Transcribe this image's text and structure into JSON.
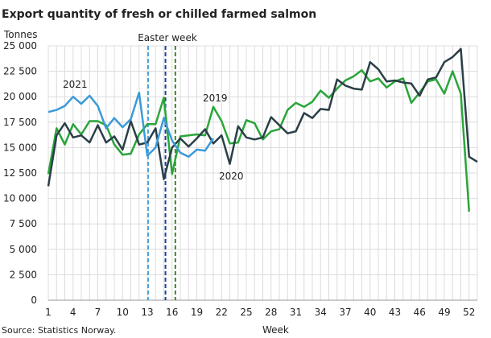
{
  "chart_data": {
    "type": "line",
    "title": "Export quantity of fresh or chilled farmed salmon",
    "ylabel": "Tonnes",
    "xlabel": "Week",
    "source": "Source: Statistics Norway.",
    "ylim": [
      0,
      25000
    ],
    "xlim": [
      1,
      53
    ],
    "yticks": [
      0,
      2500,
      5000,
      7500,
      10000,
      12500,
      15000,
      17500,
      20000,
      22500,
      25000
    ],
    "ytick_labels": [
      "0",
      "2 500",
      "5 000",
      "7 500",
      "10 000",
      "12 500",
      "15 000",
      "17 500",
      "20 000",
      "22 500",
      "25 000"
    ],
    "xticks": [
      1,
      4,
      7,
      10,
      13,
      16,
      19,
      22,
      25,
      28,
      31,
      34,
      37,
      40,
      43,
      46,
      49,
      52
    ],
    "grid": true,
    "annotation": "Easter week",
    "easter_weeks": [
      {
        "year": "2021",
        "week": 13.1,
        "color": "#4aa3df"
      },
      {
        "year": "2020",
        "week": 15.2,
        "color": "#1f3f9e"
      },
      {
        "year": "2019",
        "week": 16.4,
        "color": "#3a8a1e"
      }
    ],
    "series": [
      {
        "name": "2019",
        "color": "#2aa53a",
        "start_week": 1,
        "values": [
          12400,
          16900,
          15300,
          17300,
          16300,
          17600,
          17600,
          17200,
          15300,
          14300,
          14400,
          16300,
          17300,
          17300,
          19900,
          12400,
          16100,
          16200,
          16300,
          16200,
          19000,
          17600,
          15400,
          15500,
          17700,
          17400,
          15800,
          16600,
          16800,
          18700,
          19400,
          19000,
          19500,
          20600,
          19900,
          20800,
          21600,
          22000,
          22600,
          21500,
          21800,
          20900,
          21500,
          21800,
          19400,
          20400,
          21500,
          21700,
          20300,
          22500,
          20300,
          8700
        ]
      },
      {
        "name": "2020",
        "color": "#2b3f47",
        "start_week": 1,
        "values": [
          11200,
          16200,
          17400,
          16000,
          16200,
          15500,
          17200,
          15500,
          16100,
          14800,
          17600,
          15300,
          15500,
          16900,
          11900,
          15000,
          15900,
          15100,
          15900,
          16800,
          15400,
          16200,
          13400,
          17100,
          16000,
          15800,
          16000,
          18000,
          17200,
          16400,
          16600,
          18400,
          17900,
          18800,
          18700,
          21700,
          21100,
          20800,
          20700,
          23400,
          22700,
          21500,
          21600,
          21400,
          21300,
          20100,
          21700,
          21900,
          23400,
          23900,
          24700,
          14100,
          13600
        ]
      },
      {
        "name": "2021",
        "color": "#3b9ad9",
        "start_week": 1,
        "values": [
          18500,
          18700,
          19100,
          20000,
          19300,
          20100,
          19100,
          16900,
          17900,
          17000,
          17800,
          20400,
          14200,
          15000,
          17900,
          15700,
          14500,
          14100,
          14800,
          14700,
          15900
        ]
      }
    ]
  }
}
